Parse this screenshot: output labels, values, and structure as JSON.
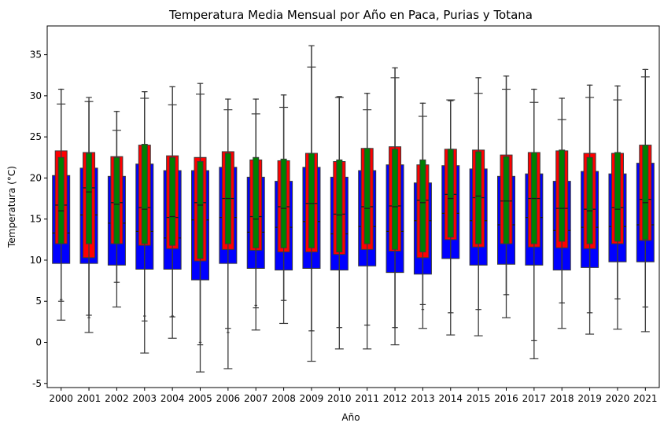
{
  "chart_data": {
    "type": "box",
    "title": "Temperatura Media Mensual por Año en Paca, Purias y Totana",
    "xlabel": "Año",
    "ylabel": "Temperatura (°C)",
    "ylim": [
      -5.5,
      38.5
    ],
    "yticks": [
      -5,
      0,
      5,
      10,
      15,
      20,
      25,
      30,
      35
    ],
    "categories": [
      "2000",
      "2001",
      "2002",
      "2003",
      "2004",
      "2005",
      "2006",
      "2007",
      "2008",
      "2009",
      "2010",
      "2011",
      "2012",
      "2013",
      "2014",
      "2015",
      "2016",
      "2017",
      "2018",
      "2019",
      "2020",
      "2021"
    ],
    "grid": false,
    "legend": "none",
    "series": [
      {
        "color": "#0000ff",
        "boxes": [
          {
            "lo": 2.7,
            "q1": 9.6,
            "med": 13.3,
            "q3": 20.3,
            "hi": 29.0
          },
          {
            "lo": 1.2,
            "q1": 9.6,
            "med": 15.5,
            "q3": 21.2,
            "hi": 29.3
          },
          {
            "lo": 4.3,
            "q1": 9.4,
            "med": 14.5,
            "q3": 20.2,
            "hi": 25.8
          },
          {
            "lo": -1.3,
            "q1": 8.9,
            "med": 13.5,
            "q3": 21.7,
            "hi": 29.7
          },
          {
            "lo": 0.5,
            "q1": 8.9,
            "med": 12.7,
            "q3": 20.9,
            "hi": 28.9
          },
          {
            "lo": -3.6,
            "q1": 7.6,
            "med": 14.9,
            "q3": 20.9,
            "hi": 30.2
          },
          {
            "lo": -3.2,
            "q1": 9.6,
            "med": 15.2,
            "q3": 21.3,
            "hi": 28.3
          },
          {
            "lo": 1.5,
            "q1": 9.0,
            "med": 13.4,
            "q3": 20.1,
            "hi": 27.8
          },
          {
            "lo": 2.3,
            "q1": 8.8,
            "med": 14.0,
            "q3": 19.6,
            "hi": 28.6
          },
          {
            "lo": -2.3,
            "q1": 9.0,
            "med": 14.7,
            "q3": 21.3,
            "hi": 33.5
          },
          {
            "lo": -0.8,
            "q1": 8.8,
            "med": 13.2,
            "q3": 20.1,
            "hi": 29.8
          },
          {
            "lo": -0.8,
            "q1": 9.3,
            "med": 14.1,
            "q3": 20.9,
            "hi": 28.3
          },
          {
            "lo": -0.3,
            "q1": 8.5,
            "med": 13.5,
            "q3": 21.6,
            "hi": 32.2
          },
          {
            "lo": 1.7,
            "q1": 8.3,
            "med": 14.8,
            "q3": 19.4,
            "hi": 27.5
          },
          {
            "lo": 0.9,
            "q1": 10.2,
            "med": 15.7,
            "q3": 21.5,
            "hi": 29.5
          },
          {
            "lo": 0.8,
            "q1": 9.4,
            "med": 14.8,
            "q3": 21.1,
            "hi": 30.3
          },
          {
            "lo": 3.0,
            "q1": 9.5,
            "med": 14.3,
            "q3": 20.2,
            "hi": 30.8
          },
          {
            "lo": -2.0,
            "q1": 9.4,
            "med": 15.2,
            "q3": 20.5,
            "hi": 29.2
          },
          {
            "lo": 1.7,
            "q1": 8.8,
            "med": 13.6,
            "q3": 19.6,
            "hi": 27.1
          },
          {
            "lo": 1.0,
            "q1": 9.1,
            "med": 14.0,
            "q3": 20.8,
            "hi": 29.8
          },
          {
            "lo": 1.6,
            "q1": 9.8,
            "med": 14.1,
            "q3": 20.5,
            "hi": 29.5
          },
          {
            "lo": 1.3,
            "q1": 9.8,
            "med": 14.3,
            "q3": 21.8,
            "hi": 32.3
          }
        ]
      },
      {
        "color": "#ff0000",
        "boxes": [
          {
            "lo": 5.0,
            "q1": 12.0,
            "med": 16.7,
            "q3": 23.3,
            "hi": 30.8
          },
          {
            "lo": 3.3,
            "q1": 10.3,
            "med": 18.8,
            "q3": 23.1,
            "hi": 29.8
          },
          {
            "lo": 7.3,
            "q1": 12.0,
            "med": 17.0,
            "q3": 22.6,
            "hi": 28.1
          },
          {
            "lo": 2.6,
            "q1": 11.8,
            "med": 16.4,
            "q3": 24.0,
            "hi": 30.5
          },
          {
            "lo": 3.1,
            "q1": 11.4,
            "med": 15.2,
            "q3": 22.7,
            "hi": 31.1
          },
          {
            "lo": -0.3,
            "q1": 9.9,
            "med": 17.0,
            "q3": 22.5,
            "hi": 31.5
          },
          {
            "lo": 1.7,
            "q1": 11.3,
            "med": 17.5,
            "q3": 23.2,
            "hi": 29.6
          },
          {
            "lo": 4.2,
            "q1": 11.2,
            "med": 15.3,
            "q3": 22.2,
            "hi": 29.6
          },
          {
            "lo": 5.1,
            "q1": 11.0,
            "med": 16.5,
            "q3": 22.1,
            "hi": 30.1
          },
          {
            "lo": 1.4,
            "q1": 11.0,
            "med": 16.9,
            "q3": 23.0,
            "hi": 36.1
          },
          {
            "lo": 1.8,
            "q1": 10.7,
            "med": 15.6,
            "q3": 22.0,
            "hi": 29.9
          },
          {
            "lo": 2.1,
            "q1": 11.3,
            "med": 16.5,
            "q3": 23.6,
            "hi": 30.3
          },
          {
            "lo": 1.8,
            "q1": 11.1,
            "med": 16.6,
            "q3": 23.8,
            "hi": 33.4
          },
          {
            "lo": 4.6,
            "q1": 10.3,
            "med": 17.3,
            "q3": 21.6,
            "hi": 29.1
          },
          {
            "lo": 3.6,
            "q1": 12.5,
            "med": 18.0,
            "q3": 23.5,
            "hi": 29.4
          },
          {
            "lo": 4.0,
            "q1": 11.6,
            "med": 17.6,
            "q3": 23.4,
            "hi": 32.2
          },
          {
            "lo": 5.8,
            "q1": 12.0,
            "med": 17.2,
            "q3": 22.8,
            "hi": 32.4
          },
          {
            "lo": 0.2,
            "q1": 11.6,
            "med": 17.5,
            "q3": 23.1,
            "hi": 30.8
          },
          {
            "lo": 4.8,
            "q1": 11.5,
            "med": 16.3,
            "q3": 23.3,
            "hi": 29.7
          },
          {
            "lo": 3.6,
            "q1": 11.4,
            "med": 16.2,
            "q3": 23.0,
            "hi": 31.3
          },
          {
            "lo": 5.3,
            "q1": 12.0,
            "med": 16.4,
            "q3": 23.0,
            "hi": 31.2
          },
          {
            "lo": 4.3,
            "q1": 12.4,
            "med": 17.4,
            "q3": 24.0,
            "hi": 33.2
          }
        ]
      },
      {
        "color": "#008000",
        "boxes": [
          {
            "lo": 5.2,
            "q1": 12.0,
            "med": 16.0,
            "q3": 22.5,
            "hi": 30.8
          },
          {
            "lo": 3.0,
            "q1": 12.0,
            "med": 18.3,
            "q3": 23.0,
            "hi": 29.3
          },
          {
            "lo": 7.3,
            "q1": 12.0,
            "med": 16.8,
            "q3": 22.5,
            "hi": 28.1
          },
          {
            "lo": 3.2,
            "q1": 12.0,
            "med": 16.2,
            "q3": 24.1,
            "hi": 30.5
          },
          {
            "lo": 3.2,
            "q1": 11.8,
            "med": 15.3,
            "q3": 22.5,
            "hi": 31.1
          },
          {
            "lo": 0.0,
            "q1": 10.2,
            "med": 16.7,
            "q3": 22.0,
            "hi": 31.5
          },
          {
            "lo": 1.2,
            "q1": 12.0,
            "med": 17.5,
            "q3": 23.0,
            "hi": 29.6
          },
          {
            "lo": 4.5,
            "q1": 11.5,
            "med": 15.0,
            "q3": 22.5,
            "hi": 29.6
          },
          {
            "lo": 5.1,
            "q1": 11.5,
            "med": 16.3,
            "q3": 22.3,
            "hi": 30.1
          },
          {
            "lo": 1.4,
            "q1": 11.5,
            "med": 16.9,
            "q3": 23.0,
            "hi": 36.1
          },
          {
            "lo": 1.8,
            "q1": 11.0,
            "med": 15.5,
            "q3": 22.2,
            "hi": 29.9
          },
          {
            "lo": 2.1,
            "q1": 12.0,
            "med": 16.3,
            "q3": 23.6,
            "hi": 30.3
          },
          {
            "lo": 1.8,
            "q1": 11.3,
            "med": 16.5,
            "q3": 23.5,
            "hi": 33.4
          },
          {
            "lo": 4.0,
            "q1": 11.0,
            "med": 17.0,
            "q3": 22.2,
            "hi": 29.1
          },
          {
            "lo": 3.6,
            "q1": 12.8,
            "med": 17.5,
            "q3": 23.5,
            "hi": 29.4
          },
          {
            "lo": 4.0,
            "q1": 12.0,
            "med": 17.8,
            "q3": 23.2,
            "hi": 32.2
          },
          {
            "lo": 5.8,
            "q1": 12.0,
            "med": 17.2,
            "q3": 22.6,
            "hi": 32.4
          },
          {
            "lo": 0.2,
            "q1": 12.0,
            "med": 17.5,
            "q3": 23.1,
            "hi": 30.8
          },
          {
            "lo": 4.8,
            "q1": 12.3,
            "med": 16.3,
            "q3": 23.4,
            "hi": 29.7
          },
          {
            "lo": 3.6,
            "q1": 12.0,
            "med": 16.0,
            "q3": 22.5,
            "hi": 31.3
          },
          {
            "lo": 5.3,
            "q1": 12.3,
            "med": 16.2,
            "q3": 23.1,
            "hi": 31.2
          },
          {
            "lo": 4.3,
            "q1": 12.5,
            "med": 17.0,
            "q3": 24.0,
            "hi": 33.2
          }
        ]
      }
    ]
  }
}
